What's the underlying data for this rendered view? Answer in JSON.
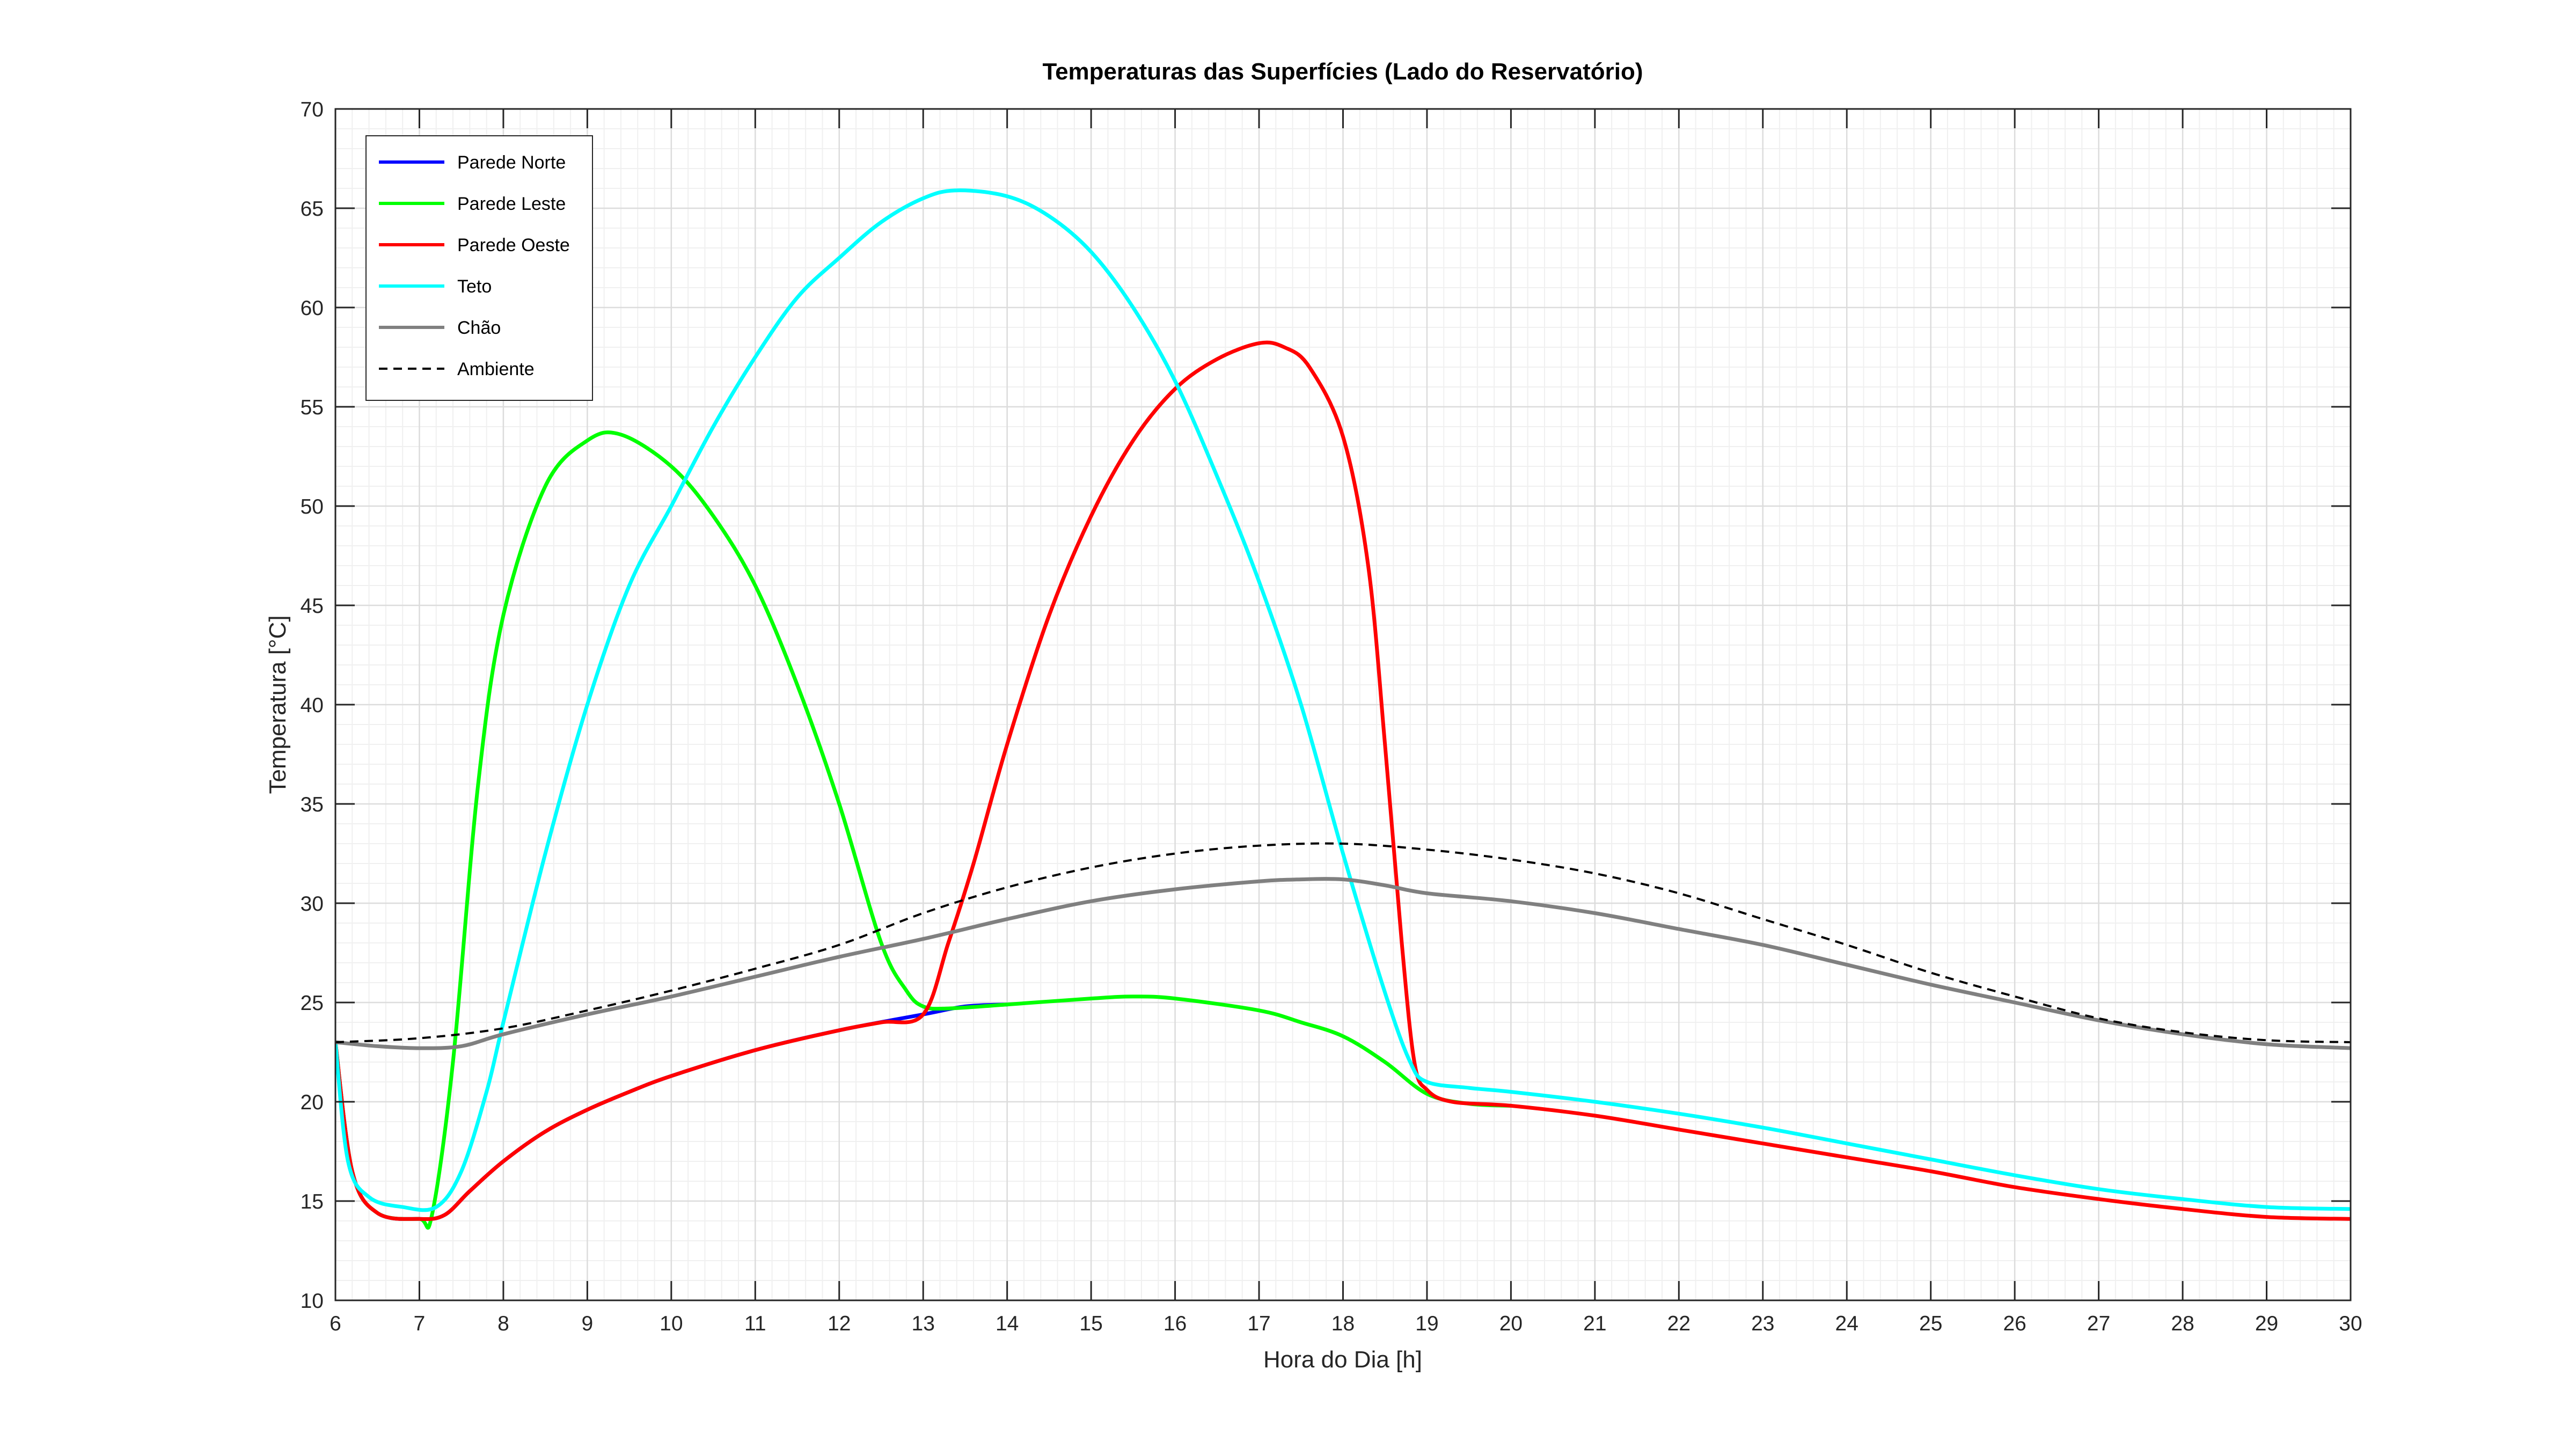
{
  "chart_data": {
    "type": "line",
    "title": "Temperaturas das Superfícies (Lado do Reservatório)",
    "xlabel": "Hora do Dia [h]",
    "ylabel": "Temperatura [°C]",
    "xlim": [
      6,
      30
    ],
    "ylim": [
      10,
      70
    ],
    "xticks": [
      "6",
      "7",
      "8",
      "9",
      "10",
      "11",
      "12",
      "13",
      "14",
      "15",
      "16",
      "17",
      "18",
      "19",
      "20",
      "21",
      "22",
      "23",
      "24",
      "25",
      "26",
      "27",
      "28",
      "29",
      "30"
    ],
    "yticks": [
      "10",
      "15",
      "20",
      "25",
      "30",
      "35",
      "40",
      "45",
      "50",
      "55",
      "60",
      "65",
      "70"
    ],
    "grid": "on",
    "minor_grid": "on",
    "legend_position": "top-left",
    "series": [
      {
        "name": "Parede Norte",
        "color": "#0000ff",
        "style": "solid",
        "points": [
          [
            6,
            23
          ],
          [
            6.2,
            16.5
          ],
          [
            6.5,
            14.4
          ],
          [
            7,
            14.1
          ],
          [
            7.3,
            14.3
          ],
          [
            7.6,
            15.5
          ],
          [
            8,
            17
          ],
          [
            8.5,
            18.5
          ],
          [
            9,
            19.6
          ],
          [
            9.5,
            20.5
          ],
          [
            10,
            21.3
          ],
          [
            11,
            22.6
          ],
          [
            12,
            23.6
          ],
          [
            13,
            24.4
          ],
          [
            13.5,
            24.8
          ],
          [
            14,
            24.9
          ]
        ]
      },
      {
        "name": "Parede Leste",
        "color": "#00ff00",
        "style": "solid",
        "points": [
          [
            6,
            23
          ],
          [
            6.2,
            16.5
          ],
          [
            6.5,
            14.4
          ],
          [
            7,
            14.1
          ],
          [
            7.15,
            14.3
          ],
          [
            7.4,
            22
          ],
          [
            7.7,
            36
          ],
          [
            8,
            44.5
          ],
          [
            8.5,
            51
          ],
          [
            9,
            53.3
          ],
          [
            9.4,
            53.6
          ],
          [
            10,
            52
          ],
          [
            10.5,
            49.5
          ],
          [
            11,
            46
          ],
          [
            11.5,
            41
          ],
          [
            12,
            35
          ],
          [
            12.5,
            28
          ],
          [
            12.8,
            25.6
          ],
          [
            13,
            24.8
          ],
          [
            13.3,
            24.7
          ],
          [
            14,
            24.9
          ],
          [
            15,
            25.2
          ],
          [
            15.5,
            25.3
          ],
          [
            16,
            25.2
          ],
          [
            17,
            24.6
          ],
          [
            17.5,
            24
          ],
          [
            18,
            23.3
          ],
          [
            18.5,
            22
          ],
          [
            19,
            20.4
          ],
          [
            19.5,
            19.9
          ],
          [
            20,
            19.8
          ]
        ]
      },
      {
        "name": "Parede Oeste",
        "color": "#ff0000",
        "style": "solid",
        "points": [
          [
            6,
            23
          ],
          [
            6.2,
            16.5
          ],
          [
            6.5,
            14.4
          ],
          [
            7,
            14.1
          ],
          [
            7.3,
            14.3
          ],
          [
            7.6,
            15.5
          ],
          [
            8,
            17
          ],
          [
            8.5,
            18.5
          ],
          [
            9,
            19.6
          ],
          [
            9.5,
            20.5
          ],
          [
            10,
            21.3
          ],
          [
            11,
            22.6
          ],
          [
            12,
            23.6
          ],
          [
            12.5,
            24
          ],
          [
            13,
            24.4
          ],
          [
            13.3,
            28
          ],
          [
            13.6,
            32
          ],
          [
            14,
            38
          ],
          [
            14.5,
            44.5
          ],
          [
            15,
            49.5
          ],
          [
            15.5,
            53.3
          ],
          [
            16,
            55.9
          ],
          [
            16.5,
            57.4
          ],
          [
            17,
            58.2
          ],
          [
            17.3,
            58
          ],
          [
            17.6,
            57
          ],
          [
            18,
            53.5
          ],
          [
            18.3,
            47
          ],
          [
            18.5,
            38
          ],
          [
            18.7,
            28
          ],
          [
            18.85,
            22
          ],
          [
            19,
            20.6
          ],
          [
            19.3,
            20
          ],
          [
            20,
            19.8
          ],
          [
            21,
            19.3
          ],
          [
            22,
            18.6
          ],
          [
            23,
            17.9
          ],
          [
            24,
            17.2
          ],
          [
            25,
            16.5
          ],
          [
            26,
            15.7
          ],
          [
            27,
            15.1
          ],
          [
            28,
            14.6
          ],
          [
            29,
            14.2
          ],
          [
            30,
            14.1
          ]
        ]
      },
      {
        "name": "Teto",
        "color": "#00ffff",
        "style": "solid",
        "points": [
          [
            6,
            23
          ],
          [
            6.15,
            17
          ],
          [
            6.4,
            15.2
          ],
          [
            6.8,
            14.7
          ],
          [
            7.2,
            14.7
          ],
          [
            7.5,
            16.5
          ],
          [
            7.8,
            20.5
          ],
          [
            8,
            24
          ],
          [
            8.5,
            32.5
          ],
          [
            9,
            40
          ],
          [
            9.5,
            46
          ],
          [
            10,
            50
          ],
          [
            10.5,
            54
          ],
          [
            11,
            57.5
          ],
          [
            11.5,
            60.5
          ],
          [
            12,
            62.5
          ],
          [
            12.5,
            64.3
          ],
          [
            13,
            65.5
          ],
          [
            13.4,
            65.9
          ],
          [
            14,
            65.6
          ],
          [
            14.5,
            64.6
          ],
          [
            15,
            62.8
          ],
          [
            15.5,
            60
          ],
          [
            16,
            56.3
          ],
          [
            16.5,
            51.5
          ],
          [
            17,
            46.2
          ],
          [
            17.5,
            40
          ],
          [
            18,
            32.5
          ],
          [
            18.5,
            25.5
          ],
          [
            18.8,
            22
          ],
          [
            19,
            21
          ],
          [
            19.5,
            20.7
          ],
          [
            20,
            20.5
          ],
          [
            21,
            20
          ],
          [
            22,
            19.4
          ],
          [
            23,
            18.7
          ],
          [
            24,
            17.9
          ],
          [
            25,
            17.1
          ],
          [
            26,
            16.3
          ],
          [
            27,
            15.6
          ],
          [
            28,
            15.1
          ],
          [
            29,
            14.7
          ],
          [
            30,
            14.6
          ]
        ]
      },
      {
        "name": "Chão",
        "color": "#808080",
        "style": "solid",
        "points": [
          [
            6,
            23
          ],
          [
            6.5,
            22.8
          ],
          [
            7,
            22.7
          ],
          [
            7.5,
            22.8
          ],
          [
            8,
            23.4
          ],
          [
            9,
            24.4
          ],
          [
            10,
            25.3
          ],
          [
            11,
            26.3
          ],
          [
            12,
            27.3
          ],
          [
            13,
            28.2
          ],
          [
            14,
            29.2
          ],
          [
            15,
            30.1
          ],
          [
            16,
            30.7
          ],
          [
            17,
            31.1
          ],
          [
            17.5,
            31.2
          ],
          [
            18,
            31.2
          ],
          [
            18.5,
            30.9
          ],
          [
            19,
            30.5
          ],
          [
            20,
            30.1
          ],
          [
            21,
            29.5
          ],
          [
            22,
            28.7
          ],
          [
            23,
            27.9
          ],
          [
            24,
            26.9
          ],
          [
            25,
            25.9
          ],
          [
            26,
            25
          ],
          [
            27,
            24.1
          ],
          [
            28,
            23.4
          ],
          [
            29,
            22.9
          ],
          [
            30,
            22.7
          ]
        ]
      },
      {
        "name": "Ambiente",
        "color": "#000000",
        "style": "dashed",
        "points": [
          [
            6,
            23
          ],
          [
            7,
            23.2
          ],
          [
            8,
            23.7
          ],
          [
            9,
            24.6
          ],
          [
            10,
            25.6
          ],
          [
            11,
            26.7
          ],
          [
            12,
            27.9
          ],
          [
            13,
            29.5
          ],
          [
            14,
            30.8
          ],
          [
            15,
            31.8
          ],
          [
            16,
            32.5
          ],
          [
            17,
            32.9
          ],
          [
            18,
            33
          ],
          [
            19,
            32.7
          ],
          [
            20,
            32.2
          ],
          [
            21,
            31.5
          ],
          [
            22,
            30.5
          ],
          [
            23,
            29.2
          ],
          [
            24,
            27.9
          ],
          [
            25,
            26.5
          ],
          [
            26,
            25.3
          ],
          [
            27,
            24.2
          ],
          [
            28,
            23.5
          ],
          [
            29,
            23.1
          ],
          [
            30,
            23
          ]
        ]
      }
    ]
  }
}
